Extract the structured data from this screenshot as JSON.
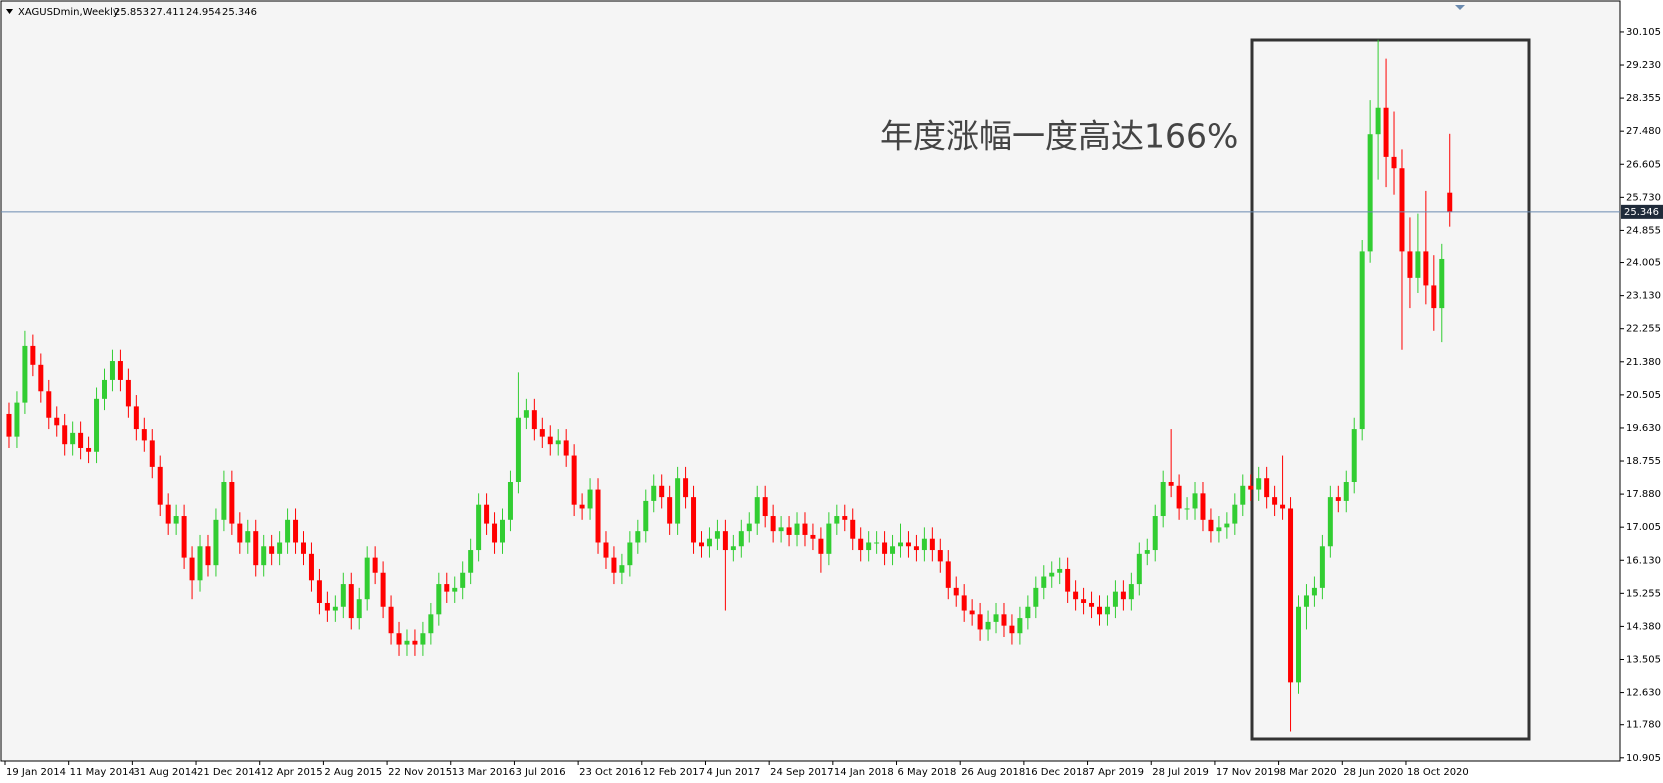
{
  "chart_data": {
    "type": "candlestick",
    "symbol": "XAGUSDmin,Weekly",
    "annotation": "年度涨幅一度高达166%",
    "up_color": "#32cd32",
    "down_color": "#ff0000",
    "current_price_line": true,
    "ylim": [
      10.82,
      30.95
    ],
    "yticks": [
      {
        "value": 10.905,
        "label": "10.905"
      },
      {
        "value": 11.78,
        "label": "11.780"
      },
      {
        "value": 12.63,
        "label": "12.630"
      },
      13.505,
      {
        "value": 14.38,
        "label": "14.380"
      },
      15.255,
      {
        "value": 16.13,
        "label": "16.130"
      },
      17.005,
      {
        "value": 17.88,
        "label": "17.880"
      },
      18.755,
      {
        "value": 19.63,
        "label": "19.630"
      },
      20.505,
      {
        "value": 21.38,
        "label": "21.380"
      },
      22.255,
      {
        "value": 23.13,
        "label": "23.130"
      },
      24.005,
      24.855,
      {
        "value": 25.73,
        "label": "25.730"
      },
      26.605,
      {
        "value": 27.48,
        "label": "27.480"
      },
      28.355,
      {
        "value": 29.23,
        "label": "29.230"
      },
      30.105
    ],
    "categories": [
      "19 Jan 2014",
      null,
      null,
      null,
      null,
      null,
      null,
      null,
      "11 May 2014",
      null,
      null,
      null,
      null,
      null,
      null,
      null,
      "31 Aug 2014",
      null,
      null,
      null,
      null,
      null,
      null,
      null,
      "21 Dec 2014",
      null,
      null,
      null,
      null,
      null,
      null,
      null,
      "12 Apr 2015",
      null,
      null,
      null,
      null,
      null,
      null,
      null,
      "2 Aug 2015",
      null,
      null,
      null,
      null,
      null,
      null,
      null,
      "22 Nov 2015",
      null,
      null,
      null,
      null,
      null,
      null,
      null,
      "13 Mar 2016",
      null,
      null,
      null,
      null,
      null,
      null,
      null,
      "3 Jul 2016",
      null,
      null,
      null,
      null,
      null,
      null,
      null,
      "23 Oct 2016",
      null,
      null,
      null,
      null,
      null,
      null,
      null,
      "12 Feb 2017",
      null,
      null,
      null,
      null,
      null,
      null,
      null,
      "4 Jun 2017",
      null,
      null,
      null,
      null,
      null,
      null,
      null,
      "24 Sep 2017",
      null,
      null,
      null,
      null,
      null,
      null,
      null,
      "14 Jan 2018",
      null,
      null,
      null,
      null,
      null,
      null,
      null,
      "6 May 2018",
      null,
      null,
      null,
      null,
      null,
      null,
      null,
      "26 Aug 2018",
      null,
      null,
      null,
      null,
      null,
      null,
      null,
      "16 Dec 2018",
      null,
      null,
      null,
      null,
      null,
      null,
      null,
      "7 Apr 2019",
      null,
      null,
      null,
      null,
      null,
      null,
      null,
      "28 Jul 2019",
      null,
      null,
      null,
      null,
      null,
      null,
      null,
      "17 Nov 2019",
      null,
      null,
      null,
      null,
      null,
      null,
      null,
      "8 Mar 2020",
      null,
      null,
      null,
      null,
      null,
      null,
      null,
      "28 Jun 2020",
      null,
      null,
      null,
      null,
      null,
      null,
      null,
      "18 Oct 2020",
      null,
      null,
      null,
      null,
      null
    ],
    "open": [
      20.0,
      19.4,
      20.3,
      21.8,
      21.3,
      20.6,
      19.9,
      19.7,
      19.2,
      19.5,
      19.1,
      19.0,
      20.4,
      20.9,
      21.4,
      20.9,
      20.2,
      19.6,
      19.3,
      18.6,
      17.6,
      17.1,
      17.3,
      16.2,
      15.6,
      16.5,
      16.0,
      17.2,
      18.2,
      17.1,
      16.6,
      16.9,
      16.0,
      16.5,
      16.3,
      16.6,
      17.2,
      16.6,
      16.3,
      15.6,
      15.0,
      14.8,
      14.9,
      15.5,
      14.6,
      15.1,
      16.2,
      15.8,
      14.9,
      14.2,
      13.9,
      14.0,
      13.9,
      14.2,
      14.7,
      15.5,
      15.3,
      15.4,
      15.8,
      16.4,
      17.6,
      17.1,
      16.6,
      17.2,
      18.2,
      19.9,
      20.1,
      19.6,
      19.4,
      19.2,
      19.3,
      18.9,
      17.6,
      17.5,
      18.0,
      16.6,
      16.2,
      15.8,
      16.0,
      16.6,
      16.9,
      17.7,
      18.1,
      17.8,
      17.1,
      18.3,
      17.8,
      16.6,
      16.5,
      16.7,
      16.9,
      16.4,
      16.5,
      16.9,
      17.1,
      17.8,
      17.3,
      16.9,
      17.0,
      16.8,
      17.1,
      16.8,
      16.7,
      16.3,
      17.1,
      17.3,
      17.2,
      16.7,
      16.4,
      16.6,
      16.6,
      16.3,
      16.5,
      16.6,
      16.5,
      16.4,
      16.7,
      16.4,
      16.1,
      15.4,
      15.2,
      14.8,
      14.7,
      14.3,
      14.5,
      14.7,
      14.4,
      14.2,
      14.6,
      14.9,
      15.4,
      15.7,
      15.8,
      15.9,
      15.3,
      15.1,
      15.0,
      14.9,
      14.7,
      14.9,
      15.3,
      15.1,
      15.5,
      16.3,
      16.4,
      17.3,
      18.2,
      18.1,
      17.5,
      17.5,
      17.9,
      17.2,
      16.9,
      17.0,
      17.1,
      17.6,
      18.1,
      18.0,
      18.3,
      17.8,
      17.6,
      17.5,
      12.9,
      14.9,
      15.2,
      15.4,
      16.5,
      17.8,
      17.7,
      18.2,
      19.6,
      24.3,
      27.4,
      28.1,
      26.8,
      26.5,
      24.3,
      23.6,
      24.3,
      23.4,
      22.8,
      25.853
    ],
    "high": [
      20.3,
      20.6,
      22.2,
      22.1,
      21.6,
      20.9,
      20.2,
      20.0,
      19.8,
      19.8,
      19.4,
      20.7,
      21.2,
      21.7,
      21.7,
      21.2,
      20.5,
      19.9,
      19.6,
      18.9,
      17.9,
      17.6,
      17.6,
      16.5,
      16.8,
      16.8,
      17.5,
      18.5,
      18.5,
      17.4,
      17.2,
      17.2,
      16.8,
      16.8,
      16.9,
      17.5,
      17.5,
      16.9,
      16.6,
      15.9,
      15.3,
      15.2,
      15.8,
      15.8,
      15.4,
      16.5,
      16.5,
      16.1,
      15.2,
      14.5,
      14.3,
      14.3,
      14.5,
      15.0,
      15.8,
      15.8,
      15.7,
      16.1,
      16.7,
      17.9,
      17.9,
      17.4,
      17.5,
      18.5,
      21.1,
      20.4,
      20.4,
      19.9,
      19.7,
      19.6,
      19.6,
      19.2,
      17.9,
      18.3,
      18.3,
      16.9,
      16.5,
      16.3,
      16.9,
      17.2,
      18.0,
      18.4,
      18.4,
      18.1,
      18.6,
      18.6,
      18.1,
      16.9,
      17.0,
      17.2,
      17.2,
      16.8,
      17.2,
      17.4,
      18.1,
      18.1,
      17.6,
      17.3,
      17.3,
      17.4,
      17.4,
      17.1,
      17.0,
      17.4,
      17.6,
      17.6,
      17.5,
      17.0,
      16.9,
      16.9,
      16.9,
      16.8,
      17.1,
      16.9,
      16.8,
      17.0,
      17.0,
      16.7,
      16.4,
      15.7,
      15.5,
      15.1,
      15.0,
      14.8,
      15.0,
      15.0,
      14.7,
      14.9,
      15.2,
      15.7,
      16.0,
      16.1,
      16.2,
      16.2,
      15.6,
      15.4,
      15.3,
      15.2,
      15.2,
      15.6,
      15.6,
      15.8,
      16.6,
      16.7,
      17.6,
      18.5,
      19.6,
      18.4,
      17.8,
      18.2,
      18.2,
      17.5,
      17.3,
      17.4,
      17.9,
      18.4,
      18.4,
      18.6,
      18.6,
      18.1,
      18.9,
      17.8,
      15.2,
      15.5,
      15.7,
      16.8,
      18.1,
      18.1,
      18.5,
      19.9,
      24.6,
      28.3,
      29.9,
      29.4,
      28.0,
      27.0,
      25.2,
      25.3,
      25.9,
      24.2,
      24.5,
      27.411
    ],
    "low": [
      19.1,
      19.1,
      20.0,
      21.0,
      20.3,
      19.6,
      19.4,
      18.9,
      18.9,
      18.8,
      18.7,
      18.7,
      20.1,
      20.6,
      20.6,
      19.9,
      19.3,
      19.0,
      18.3,
      17.3,
      16.8,
      16.8,
      15.9,
      15.1,
      15.3,
      15.7,
      15.7,
      16.9,
      16.8,
      16.3,
      16.3,
      15.7,
      15.7,
      16.0,
      16.0,
      16.3,
      16.3,
      16.0,
      15.3,
      14.7,
      14.5,
      14.5,
      14.6,
      14.3,
      14.3,
      14.8,
      15.5,
      14.6,
      13.9,
      13.6,
      13.6,
      13.6,
      13.6,
      13.9,
      14.4,
      15.0,
      15.0,
      15.1,
      15.5,
      16.1,
      16.8,
      16.3,
      16.3,
      16.9,
      17.9,
      19.6,
      19.3,
      19.1,
      18.9,
      18.9,
      18.6,
      17.3,
      17.2,
      17.2,
      16.3,
      15.9,
      15.5,
      15.5,
      15.7,
      16.3,
      16.6,
      17.4,
      17.5,
      16.8,
      16.8,
      17.5,
      16.3,
      16.2,
      16.2,
      16.4,
      14.8,
      16.1,
      16.2,
      16.6,
      16.8,
      17.0,
      16.6,
      16.6,
      16.5,
      16.5,
      16.5,
      16.4,
      15.8,
      16.0,
      16.8,
      16.9,
      16.4,
      16.1,
      16.1,
      16.3,
      16.0,
      16.0,
      16.2,
      16.2,
      16.1,
      16.1,
      16.1,
      15.8,
      15.1,
      14.9,
      14.5,
      14.4,
      14.0,
      14.0,
      14.2,
      14.1,
      13.9,
      13.9,
      14.3,
      14.6,
      15.1,
      15.4,
      15.5,
      15.0,
      14.8,
      14.7,
      14.6,
      14.4,
      14.4,
      14.6,
      14.8,
      14.8,
      15.2,
      16.0,
      16.1,
      17.0,
      17.8,
      17.2,
      17.2,
      17.2,
      16.9,
      16.6,
      16.6,
      16.7,
      16.8,
      17.3,
      17.7,
      17.7,
      17.5,
      17.3,
      17.2,
      11.6,
      12.6,
      14.3,
      14.9,
      15.1,
      16.2,
      17.4,
      17.4,
      17.9,
      19.3,
      24.0,
      26.2,
      26.0,
      25.8,
      21.7,
      22.8,
      23.2,
      22.9,
      22.2,
      21.9,
      24.954
    ],
    "close": [
      19.4,
      20.3,
      21.8,
      21.3,
      20.6,
      19.9,
      19.7,
      19.2,
      19.5,
      19.1,
      19.0,
      20.4,
      20.9,
      21.4,
      20.9,
      20.2,
      19.6,
      19.3,
      18.6,
      17.6,
      17.1,
      17.3,
      16.2,
      15.6,
      16.5,
      16.0,
      17.2,
      18.2,
      17.1,
      16.6,
      16.9,
      16.0,
      16.5,
      16.3,
      16.6,
      17.2,
      16.6,
      16.3,
      15.6,
      15.0,
      14.8,
      14.9,
      15.5,
      14.6,
      15.1,
      16.2,
      15.8,
      14.9,
      14.2,
      13.9,
      14.0,
      13.9,
      14.2,
      14.7,
      15.5,
      15.3,
      15.4,
      15.8,
      16.4,
      17.6,
      17.1,
      16.6,
      17.2,
      18.2,
      19.9,
      20.1,
      19.6,
      19.4,
      19.2,
      19.3,
      18.9,
      17.6,
      17.5,
      18.0,
      16.6,
      16.2,
      15.8,
      16.0,
      16.6,
      16.9,
      17.7,
      18.1,
      17.8,
      17.1,
      18.3,
      17.8,
      16.6,
      16.5,
      16.7,
      16.9,
      16.4,
      16.5,
      16.9,
      17.1,
      17.8,
      17.3,
      16.9,
      17.0,
      16.8,
      17.1,
      16.8,
      16.7,
      16.3,
      17.1,
      17.3,
      17.2,
      16.7,
      16.4,
      16.6,
      16.6,
      16.3,
      16.5,
      16.6,
      16.5,
      16.4,
      16.7,
      16.4,
      16.1,
      15.4,
      15.2,
      14.8,
      14.7,
      14.3,
      14.5,
      14.7,
      14.4,
      14.2,
      14.6,
      14.9,
      15.4,
      15.7,
      15.8,
      15.9,
      15.3,
      15.1,
      15.0,
      14.9,
      14.7,
      14.9,
      15.3,
      15.1,
      15.5,
      16.3,
      16.4,
      17.3,
      18.2,
      18.1,
      17.5,
      17.5,
      17.9,
      17.2,
      16.9,
      17.0,
      17.1,
      17.6,
      18.1,
      18.0,
      18.3,
      17.8,
      17.6,
      17.5,
      12.9,
      14.9,
      15.2,
      15.4,
      16.5,
      17.8,
      17.7,
      18.2,
      19.6,
      24.3,
      27.4,
      28.1,
      26.8,
      26.5,
      24.3,
      23.6,
      24.3,
      23.4,
      22.8,
      24.1,
      25.346
    ]
  }
}
